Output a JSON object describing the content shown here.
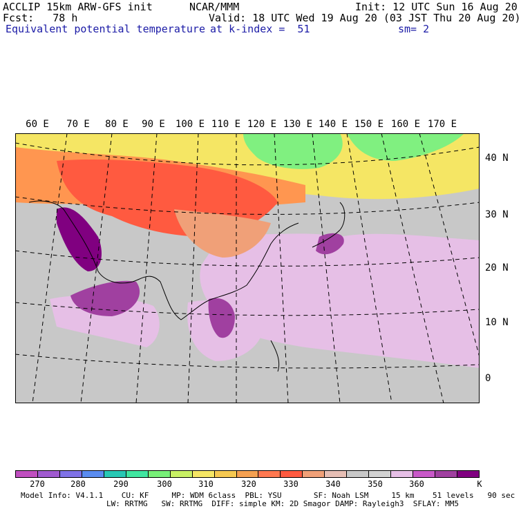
{
  "header": {
    "line1_left": "ACCLIP 15km ARW-GFS init",
    "line1_center": "NCAR/MMM",
    "line1_right": "Init: 12 UTC Sun 16 Aug 20",
    "line2_left": "Fcst:   78 h",
    "line2_right": "Valid: 18 UTC Wed 19 Aug 20 (03 JST Thu 20 Aug 20)",
    "line3_left": "Equivalent potential temperature",
    "line3_center": "at k-index =  51",
    "line3_right": "sm= 2"
  },
  "map": {
    "lon_labels": [
      "60 E",
      "70 E",
      "80 E",
      "90 E",
      "100 E",
      "110 E",
      "120 E",
      "130 E",
      "140 E",
      "150 E",
      "160 E",
      "170 E"
    ],
    "lat_labels": [
      "40 N",
      "30 N",
      "20 N",
      "10 N",
      "0"
    ],
    "colors": {
      "ocean_light": "#e6bfe6",
      "land_gray": "#c8c8c8",
      "dark_purple": "#800080",
      "mid_purple": "#a040a0",
      "orange_red": "#ff5a40",
      "orange": "#ff9650",
      "yellow": "#f5e664",
      "green": "#80f080",
      "salmon": "#f0a078",
      "white": "#ffffff"
    }
  },
  "colorbar": {
    "colors": [
      "#c04fc0",
      "#a05ad0",
      "#7f72e6",
      "#5a8cf0",
      "#28c8b4",
      "#40e6a0",
      "#78f078",
      "#c8f064",
      "#f5e664",
      "#f5c850",
      "#f5a050",
      "#ff7850",
      "#ff5a40",
      "#f0a078",
      "#e6beb4",
      "#c8c8c8",
      "#d2d2d2",
      "#e6bfe6",
      "#c858c8",
      "#a040a0",
      "#800080"
    ],
    "tick_labels": [
      "270",
      "280",
      "290",
      "300",
      "310",
      "320",
      "330",
      "340",
      "350",
      "360",
      "K"
    ]
  },
  "footer": {
    "line1": "Model Info: V4.1.1    CU: KF     MP: WDM 6class  PBL: YSU       SF: Noah LSM     15 km    51 levels   90 sec",
    "line2": "LW: RRTMG   SW: RRTMG  DIFF: simple KM: 2D Smagor DAMP: Rayleigh3  SFLAY: MM5"
  }
}
